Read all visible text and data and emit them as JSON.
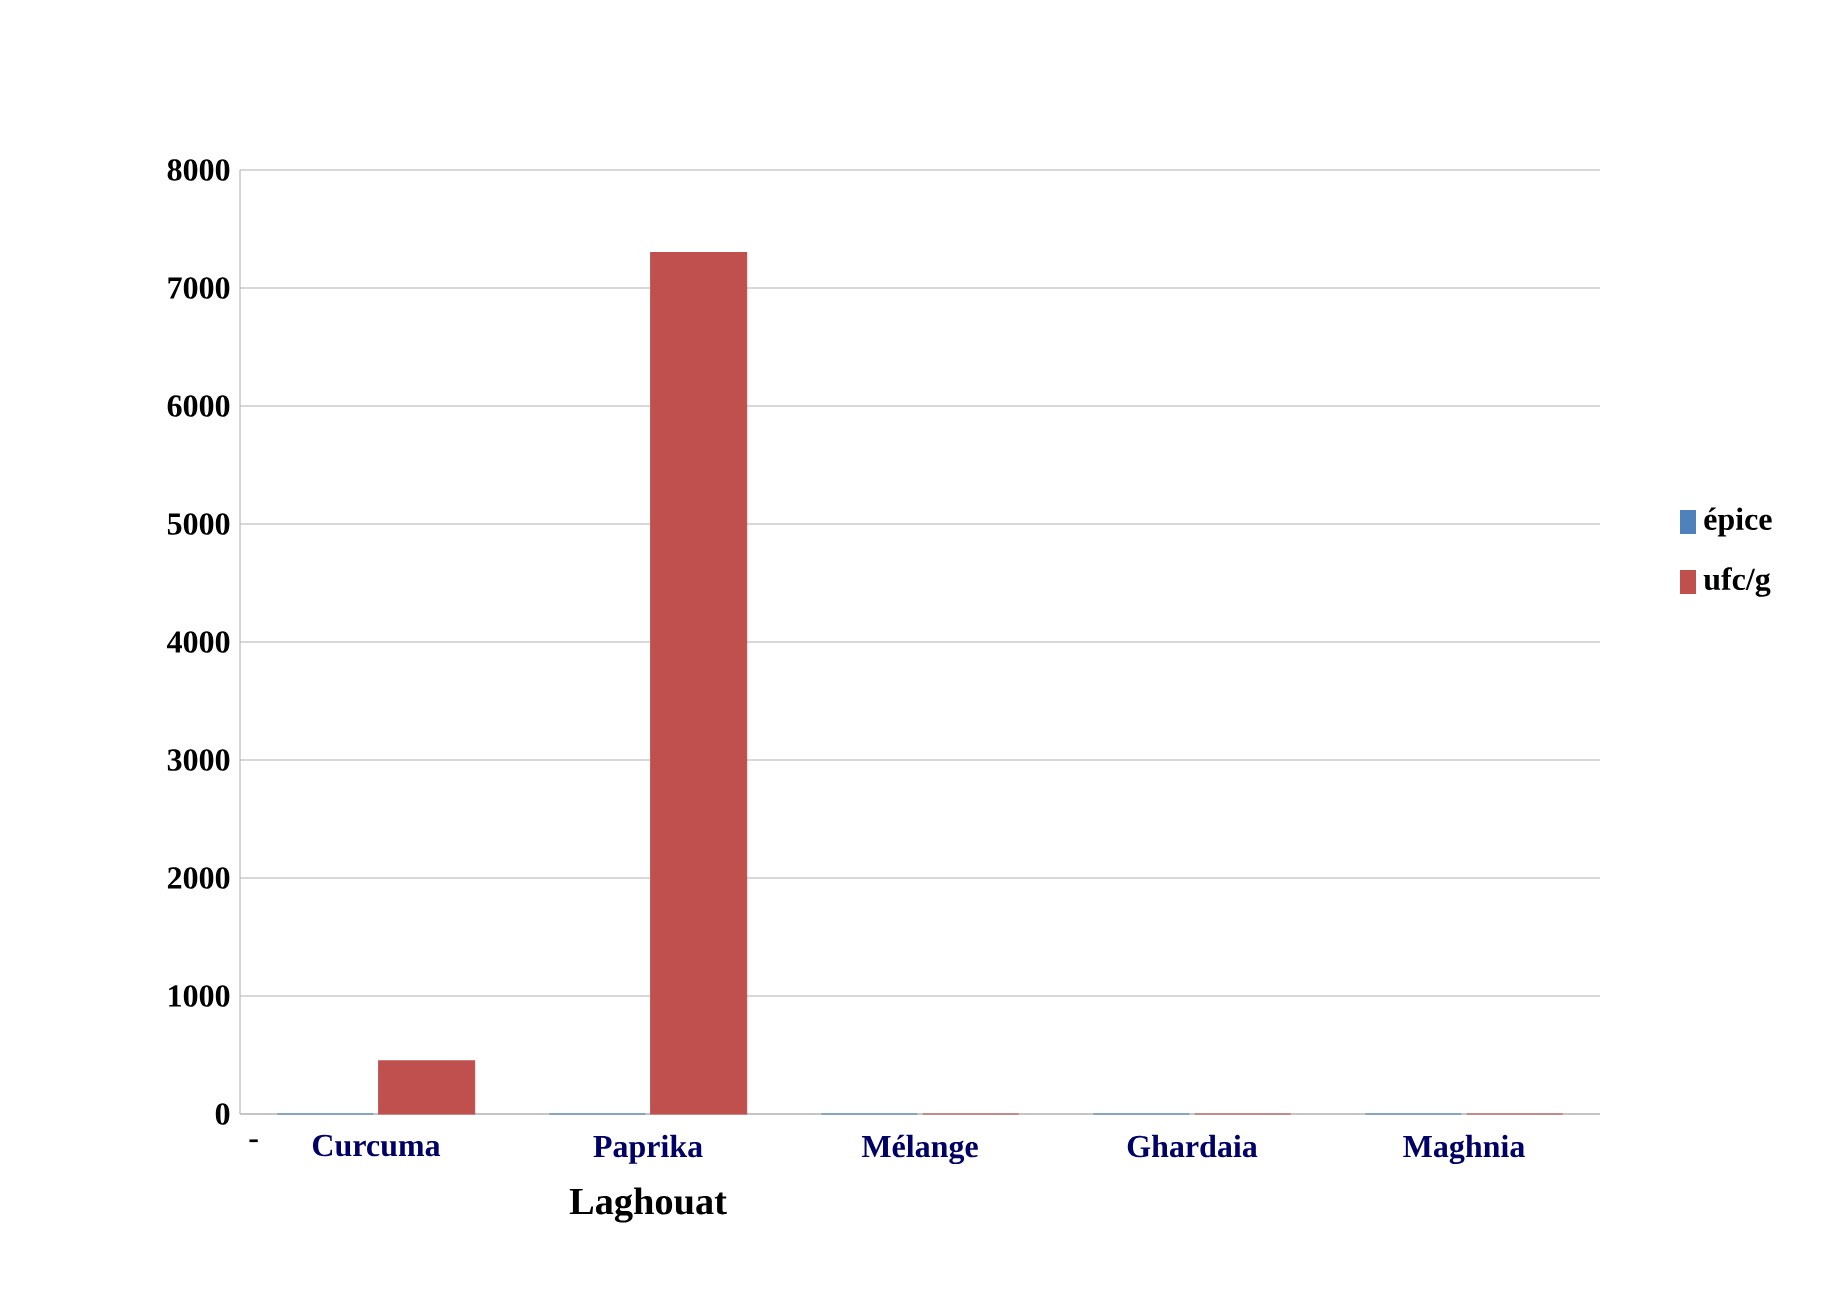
{
  "chart_data": {
    "type": "bar",
    "categories": [
      "Curcuma",
      "Paprika",
      "Mélange",
      "Ghardaia",
      "Maghnia"
    ],
    "series": [
      {
        "name": "épice",
        "color": "#4f81bd",
        "values": [
          0,
          0,
          0,
          0,
          0
        ]
      },
      {
        "name": "ufc/g",
        "color": "#c0504d",
        "values": [
          450,
          7300,
          0,
          0,
          0
        ]
      }
    ],
    "ylim": [
      0,
      8000
    ],
    "yticks": [
      0,
      1000,
      2000,
      3000,
      4000,
      5000,
      6000,
      7000,
      8000
    ],
    "grid": "y",
    "legend": "right",
    "annotations": [
      "-",
      "Laghouat"
    ]
  }
}
